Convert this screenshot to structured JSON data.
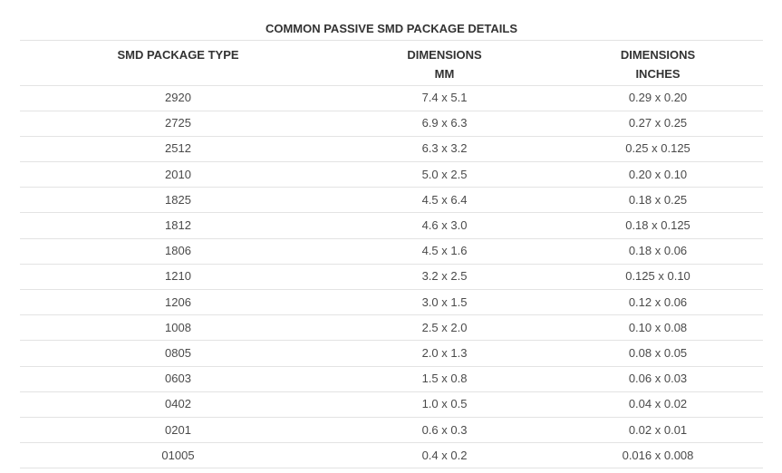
{
  "table": {
    "caption": "COMMON PASSIVE SMD PACKAGE DETAILS",
    "headers": [
      {
        "line1": "SMD PACKAGE TYPE",
        "line2": ""
      },
      {
        "line1": "DIMENSIONS",
        "line2": "MM"
      },
      {
        "line1": "DIMENSIONS",
        "line2": "INCHES"
      }
    ],
    "rows": [
      [
        "2920",
        "7.4 x 5.1",
        "0.29 x 0.20"
      ],
      [
        "2725",
        "6.9 x 6.3",
        "0.27 x 0.25"
      ],
      [
        "2512",
        "6.3 x 3.2",
        "0.25 x 0.125"
      ],
      [
        "2010",
        "5.0 x 2.5",
        "0.20 x 0.10"
      ],
      [
        "1825",
        "4.5 x 6.4",
        "0.18 x 0.25"
      ],
      [
        "1812",
        "4.6 x 3.0",
        "0.18 x 0.125"
      ],
      [
        "1806",
        "4.5 x 1.6",
        "0.18 x 0.06"
      ],
      [
        "1210",
        "3.2 x 2.5",
        "0.125 x 0.10"
      ],
      [
        "1206",
        "3.0 x 1.5",
        "0.12 x 0.06"
      ],
      [
        "1008",
        "2.5 x 2.0",
        "0.10 x 0.08"
      ],
      [
        "0805",
        "2.0 x 1.3",
        "0.08 x 0.05"
      ],
      [
        "0603",
        "1.5 x 0.8",
        "0.06 x 0.03"
      ],
      [
        "0402",
        "1.0 x 0.5",
        "0.04 x 0.02"
      ],
      [
        "0201",
        "0.6 x 0.3",
        "0.02 x 0.01"
      ],
      [
        "01005",
        "0.4 x 0.2",
        "0.016 x 0.008"
      ]
    ]
  }
}
